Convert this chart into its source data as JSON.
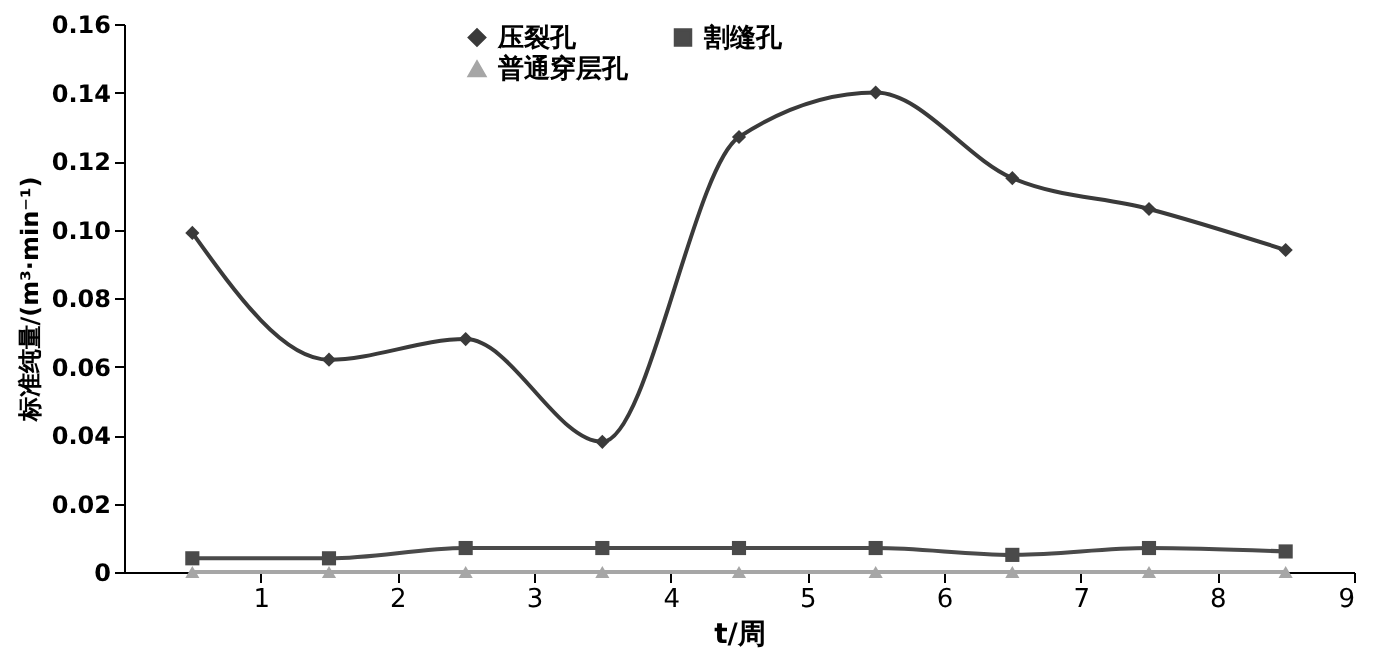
{
  "chart_data": {
    "type": "line",
    "xlabel": "t/周",
    "ylabel": "标准纯量/(m³·min⁻¹)",
    "x": [
      0.5,
      1.5,
      2.5,
      3.5,
      4.5,
      5.5,
      6.5,
      7.5,
      8.5
    ],
    "series": [
      {
        "name": "压裂孔",
        "color": "#3a3a3a",
        "marker": "diamond",
        "values": [
          0.099,
          0.062,
          0.068,
          0.038,
          0.127,
          0.14,
          0.115,
          0.106,
          0.094
        ]
      },
      {
        "name": "割缝孔",
        "color": "#4a4a4a",
        "marker": "square",
        "values": [
          0.004,
          0.004,
          0.007,
          0.007,
          0.007,
          0.007,
          0.005,
          0.007,
          0.006
        ]
      },
      {
        "name": "普通穿层孔",
        "color": "#a6a6a6",
        "marker": "triangle",
        "values": [
          0,
          0,
          0,
          0,
          0,
          0,
          0,
          0,
          0
        ]
      }
    ],
    "xlim": [
      0,
      9
    ],
    "xticks": [
      1,
      2,
      3,
      4,
      5,
      6,
      7,
      8,
      9
    ],
    "ylim": [
      0,
      0.16
    ],
    "yticks": [
      0,
      0.02,
      0.04,
      0.06,
      0.08,
      {
        "value": 0.1,
        "label": "0.10"
      },
      0.12,
      0.14,
      0.16
    ],
    "grid": false,
    "legend": "top",
    "line_style": "solid"
  }
}
